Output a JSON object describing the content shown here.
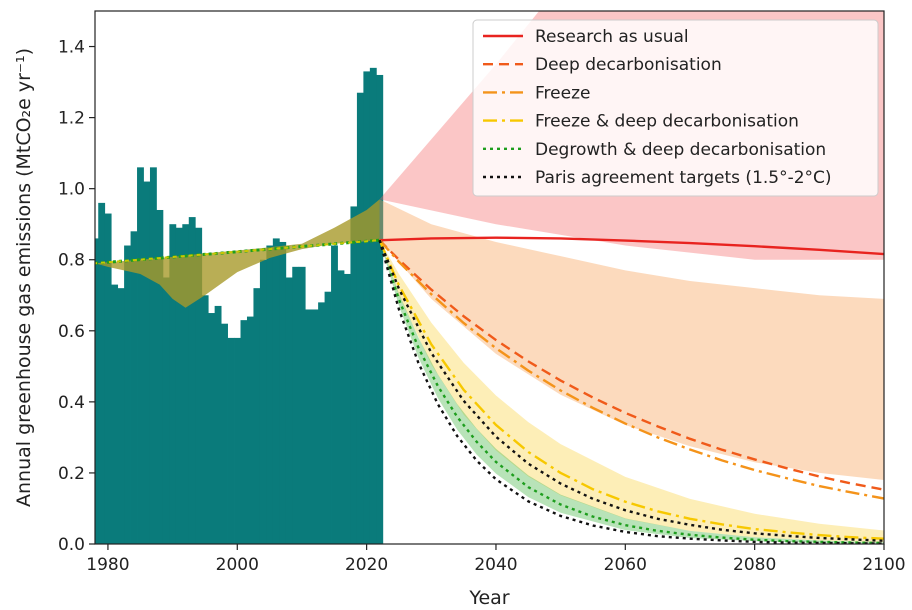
{
  "chart_data": {
    "type": "line",
    "xlabel": "Year",
    "ylabel": "Annual greenhouse gas emissions (MtCO₂e yr⁻¹)",
    "xlim": [
      1978,
      2100
    ],
    "ylim": [
      0,
      1.5
    ],
    "xticks": [
      1980,
      2000,
      2020,
      2040,
      2060,
      2080,
      2100
    ],
    "yticks": [
      0.0,
      0.2,
      0.4,
      0.6,
      0.8,
      1.0,
      1.2,
      1.4
    ],
    "grid": false,
    "legend_position": "top-right",
    "historical_bars": {
      "color": "#0a7b7b",
      "years": [
        1978,
        1979,
        1980,
        1981,
        1982,
        1983,
        1984,
        1985,
        1986,
        1987,
        1988,
        1989,
        1990,
        1991,
        1992,
        1993,
        1994,
        1995,
        1996,
        1997,
        1998,
        1999,
        2000,
        2001,
        2002,
        2003,
        2004,
        2005,
        2006,
        2007,
        2008,
        2009,
        2010,
        2011,
        2012,
        2013,
        2014,
        2015,
        2016,
        2017,
        2018,
        2019,
        2020,
        2021,
        2022
      ],
      "values": [
        0.86,
        0.96,
        0.93,
        0.73,
        0.72,
        0.84,
        0.88,
        1.06,
        1.02,
        1.06,
        0.94,
        0.75,
        0.9,
        0.89,
        0.9,
        0.92,
        0.89,
        0.7,
        0.65,
        0.67,
        0.62,
        0.58,
        0.58,
        0.63,
        0.64,
        0.72,
        0.8,
        0.84,
        0.86,
        0.85,
        0.75,
        0.78,
        0.78,
        0.66,
        0.66,
        0.68,
        0.71,
        0.84,
        0.77,
        0.76,
        0.95,
        1.27,
        1.33,
        1.34,
        1.32
      ]
    },
    "series": [
      {
        "name": "Research as usual",
        "color": "#e8231f",
        "dash": "",
        "x": [
          2022,
          2030,
          2040,
          2050,
          2060,
          2070,
          2080,
          2090,
          2100
        ],
        "y": [
          0.855,
          0.86,
          0.862,
          0.86,
          0.854,
          0.847,
          0.838,
          0.828,
          0.816
        ]
      },
      {
        "name": "Deep decarbonisation",
        "color": "#f05a1a",
        "dash": "10,6",
        "x": [
          2022,
          2025,
          2030,
          2035,
          2040,
          2045,
          2050,
          2055,
          2060,
          2065,
          2070,
          2075,
          2080,
          2085,
          2090,
          2095,
          2100
        ],
        "y": [
          0.855,
          0.8,
          0.716,
          0.641,
          0.574,
          0.514,
          0.46,
          0.412,
          0.369,
          0.331,
          0.296,
          0.265,
          0.238,
          0.213,
          0.19,
          0.17,
          0.153
        ]
      },
      {
        "name": "Freeze",
        "color": "#f4931a",
        "dash": "14,5,3,5",
        "x": [
          2022,
          2025,
          2030,
          2035,
          2040,
          2045,
          2050,
          2055,
          2060,
          2065,
          2070,
          2075,
          2080,
          2085,
          2090,
          2095,
          2100
        ],
        "y": [
          0.855,
          0.794,
          0.703,
          0.622,
          0.551,
          0.488,
          0.432,
          0.383,
          0.339,
          0.3,
          0.266,
          0.235,
          0.208,
          0.185,
          0.163,
          0.145,
          0.128
        ]
      },
      {
        "name": "Freeze & deep decarbonisation",
        "color": "#f7c800",
        "dash": "14,5,3,5",
        "x": [
          2022,
          2025,
          2030,
          2035,
          2040,
          2045,
          2050,
          2055,
          2060,
          2065,
          2070,
          2075,
          2080,
          2085,
          2090,
          2095,
          2100
        ],
        "y": [
          0.855,
          0.728,
          0.562,
          0.434,
          0.335,
          0.259,
          0.2,
          0.154,
          0.119,
          0.092,
          0.071,
          0.055,
          0.042,
          0.033,
          0.025,
          0.019,
          0.015
        ]
      },
      {
        "name": "Degrowth & deep decarbonisation",
        "color": "#1e9e1e",
        "dash": "3,4",
        "x": [
          2022,
          2025,
          2028,
          2031,
          2034,
          2037,
          2040,
          2045,
          2050,
          2055,
          2060,
          2065,
          2070,
          2075,
          2080,
          2085,
          2090,
          2095,
          2100
        ],
        "y": [
          0.855,
          0.688,
          0.553,
          0.445,
          0.358,
          0.288,
          0.231,
          0.16,
          0.111,
          0.077,
          0.053,
          0.037,
          0.026,
          0.018,
          0.012,
          0.008,
          0.006,
          0.004,
          0.003
        ]
      },
      {
        "name": "Paris agreement targets (1.5°-2°C)",
        "color": "#111111",
        "dash": "3,4",
        "x": [
          2022,
          2025,
          2028,
          2031,
          2034,
          2037,
          2040,
          2045,
          2050,
          2055,
          2060,
          2065,
          2070,
          2075,
          2080,
          2085,
          2090,
          2095,
          2100
        ],
        "y": [
          0.855,
          0.66,
          0.51,
          0.394,
          0.304,
          0.235,
          0.182,
          0.12,
          0.079,
          0.052,
          0.034,
          0.022,
          0.015,
          0.01,
          0.006,
          0.004,
          0.003,
          0.002,
          0.001
        ]
      },
      {
        "name": "",
        "color": "#111111",
        "dash": "3,4",
        "x": [
          2022,
          2025,
          2030,
          2035,
          2040,
          2045,
          2050,
          2055,
          2060,
          2065,
          2070,
          2075,
          2080,
          2085,
          2090,
          2095,
          2100
        ],
        "y": [
          0.855,
          0.718,
          0.538,
          0.403,
          0.302,
          0.226,
          0.17,
          0.127,
          0.095,
          0.071,
          0.054,
          0.04,
          0.03,
          0.023,
          0.017,
          0.013,
          0.009
        ]
      }
    ],
    "historical_trend": {
      "color": "#c8c800",
      "x": [
        1978,
        2022
      ],
      "y": [
        0.79,
        0.855
      ]
    },
    "bands": [
      {
        "series": "Research as usual",
        "color": "#f46a6a",
        "opacity": 0.38,
        "x": [
          2022,
          2040,
          2060,
          2080,
          2100
        ],
        "upper": [
          0.97,
          1.35,
          1.8,
          2.3,
          2.8
        ],
        "lower": [
          0.97,
          0.9,
          0.84,
          0.8,
          0.8
        ]
      },
      {
        "series": "Deep decarbonisation",
        "color": "#f7a25a",
        "opacity": 0.4,
        "x": [
          2022,
          2030,
          2040,
          2050,
          2060,
          2070,
          2080,
          2090,
          2100
        ],
        "upper": [
          0.97,
          0.9,
          0.85,
          0.81,
          0.77,
          0.74,
          0.72,
          0.7,
          0.69
        ],
        "lower": [
          0.855,
          0.69,
          0.535,
          0.42,
          0.335,
          0.275,
          0.23,
          0.2,
          0.18
        ]
      },
      {
        "series": "Freeze & deep decarbonisation",
        "color": "#f9d54a",
        "opacity": 0.4,
        "x": [
          2022,
          2025,
          2030,
          2035,
          2040,
          2045,
          2050,
          2060,
          2070,
          2080,
          2090,
          2100
        ],
        "upper": [
          0.855,
          0.76,
          0.623,
          0.51,
          0.418,
          0.343,
          0.281,
          0.189,
          0.127,
          0.085,
          0.057,
          0.038
        ],
        "lower": [
          0.855,
          0.7,
          0.505,
          0.364,
          0.263,
          0.19,
          0.137,
          0.071,
          0.037,
          0.019,
          0.01,
          0.005
        ]
      },
      {
        "series": "Degrowth & deep decarbonisation",
        "color": "#4db84d",
        "opacity": 0.4,
        "x": [
          2022,
          2025,
          2028,
          2031,
          2034,
          2037,
          2040,
          2045,
          2050,
          2060,
          2070,
          2080,
          2090,
          2100
        ],
        "upper": [
          0.855,
          0.705,
          0.581,
          0.478,
          0.394,
          0.325,
          0.268,
          0.193,
          0.139,
          0.072,
          0.037,
          0.019,
          0.01,
          0.005
        ],
        "lower": [
          0.855,
          0.67,
          0.525,
          0.411,
          0.322,
          0.252,
          0.198,
          0.132,
          0.088,
          0.039,
          0.017,
          0.008,
          0.003,
          0.002
        ]
      }
    ],
    "historical_band": {
      "color": "#a89a2a",
      "opacity": 0.8,
      "x": [
        1978,
        1980,
        1985,
        1988,
        1990,
        1992,
        1995,
        2000,
        2005,
        2010,
        2015,
        2020,
        2022
      ],
      "upper": [
        0.79,
        0.793,
        0.8,
        0.805,
        0.808,
        0.812,
        0.818,
        0.826,
        0.835,
        0.845,
        0.89,
        0.94,
        0.97
      ],
      "lower": [
        0.79,
        0.78,
        0.76,
        0.73,
        0.69,
        0.665,
        0.7,
        0.765,
        0.805,
        0.83,
        0.845,
        0.852,
        0.855
      ]
    }
  }
}
